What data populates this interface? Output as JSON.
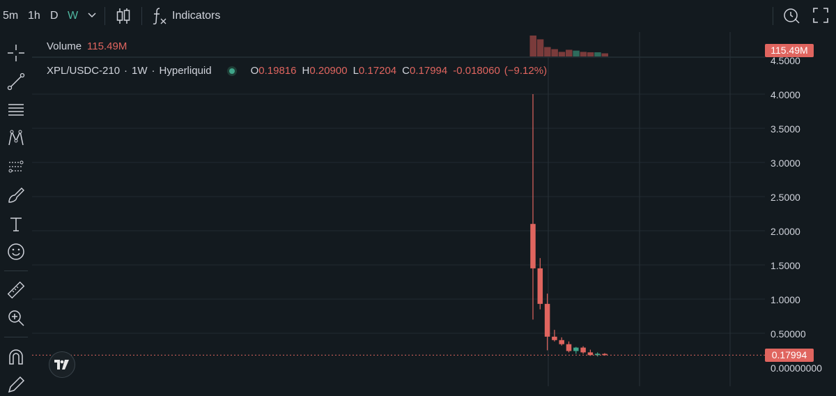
{
  "toolbar": {
    "timeframes": [
      "5m",
      "1h",
      "D",
      "W"
    ],
    "active_timeframe": "W",
    "indicators_label": "Indicators"
  },
  "legend": {
    "volume_label": "Volume",
    "volume_value": "115.49M",
    "symbol": "XPL/USDC-210",
    "interval": "1W",
    "exchange": "Hyperliquid",
    "open_label": "O",
    "open": "0.19816",
    "high_label": "H",
    "high": "0.20900",
    "low_label": "L",
    "low": "0.17204",
    "close_label": "C",
    "close": "0.17994",
    "change": "-0.018060",
    "change_pct": "(−9.12%)"
  },
  "price_axis": {
    "labels": [
      "4.5000",
      "4.0000",
      "3.5000",
      "3.0000",
      "2.5000",
      "2.0000",
      "1.5000",
      "1.0000",
      "0.50000",
      "0.00000000"
    ],
    "current_price": "0.17994",
    "volume_tag": "115.49M"
  },
  "colors": {
    "down": "#e0655f",
    "up": "#3fa58a",
    "background": "#131a1f"
  },
  "chart_data": {
    "type": "candlestick",
    "ylim": [
      0,
      4.5
    ],
    "candles": [
      {
        "o": 2.1,
        "h": 4.0,
        "l": 0.7,
        "c": 1.45
      },
      {
        "o": 1.45,
        "h": 1.6,
        "l": 0.85,
        "c": 0.93
      },
      {
        "o": 0.93,
        "h": 1.08,
        "l": 0.25,
        "c": 0.45
      },
      {
        "o": 0.45,
        "h": 0.55,
        "l": 0.38,
        "c": 0.4
      },
      {
        "o": 0.4,
        "h": 0.44,
        "l": 0.32,
        "c": 0.34
      },
      {
        "o": 0.34,
        "h": 0.38,
        "l": 0.22,
        "c": 0.24
      },
      {
        "o": 0.24,
        "h": 0.3,
        "l": 0.2,
        "c": 0.29
      },
      {
        "o": 0.29,
        "h": 0.31,
        "l": 0.2,
        "c": 0.22
      },
      {
        "o": 0.22,
        "h": 0.26,
        "l": 0.17,
        "c": 0.18
      },
      {
        "o": 0.18,
        "h": 0.22,
        "l": 0.16,
        "c": 0.2
      },
      {
        "o": 0.19816,
        "h": 0.209,
        "l": 0.17204,
        "c": 0.17994
      }
    ],
    "volume_relative": [
      1.0,
      0.82,
      0.45,
      0.35,
      0.22,
      0.32,
      0.28,
      0.22,
      0.2,
      0.2,
      0.15
    ]
  }
}
